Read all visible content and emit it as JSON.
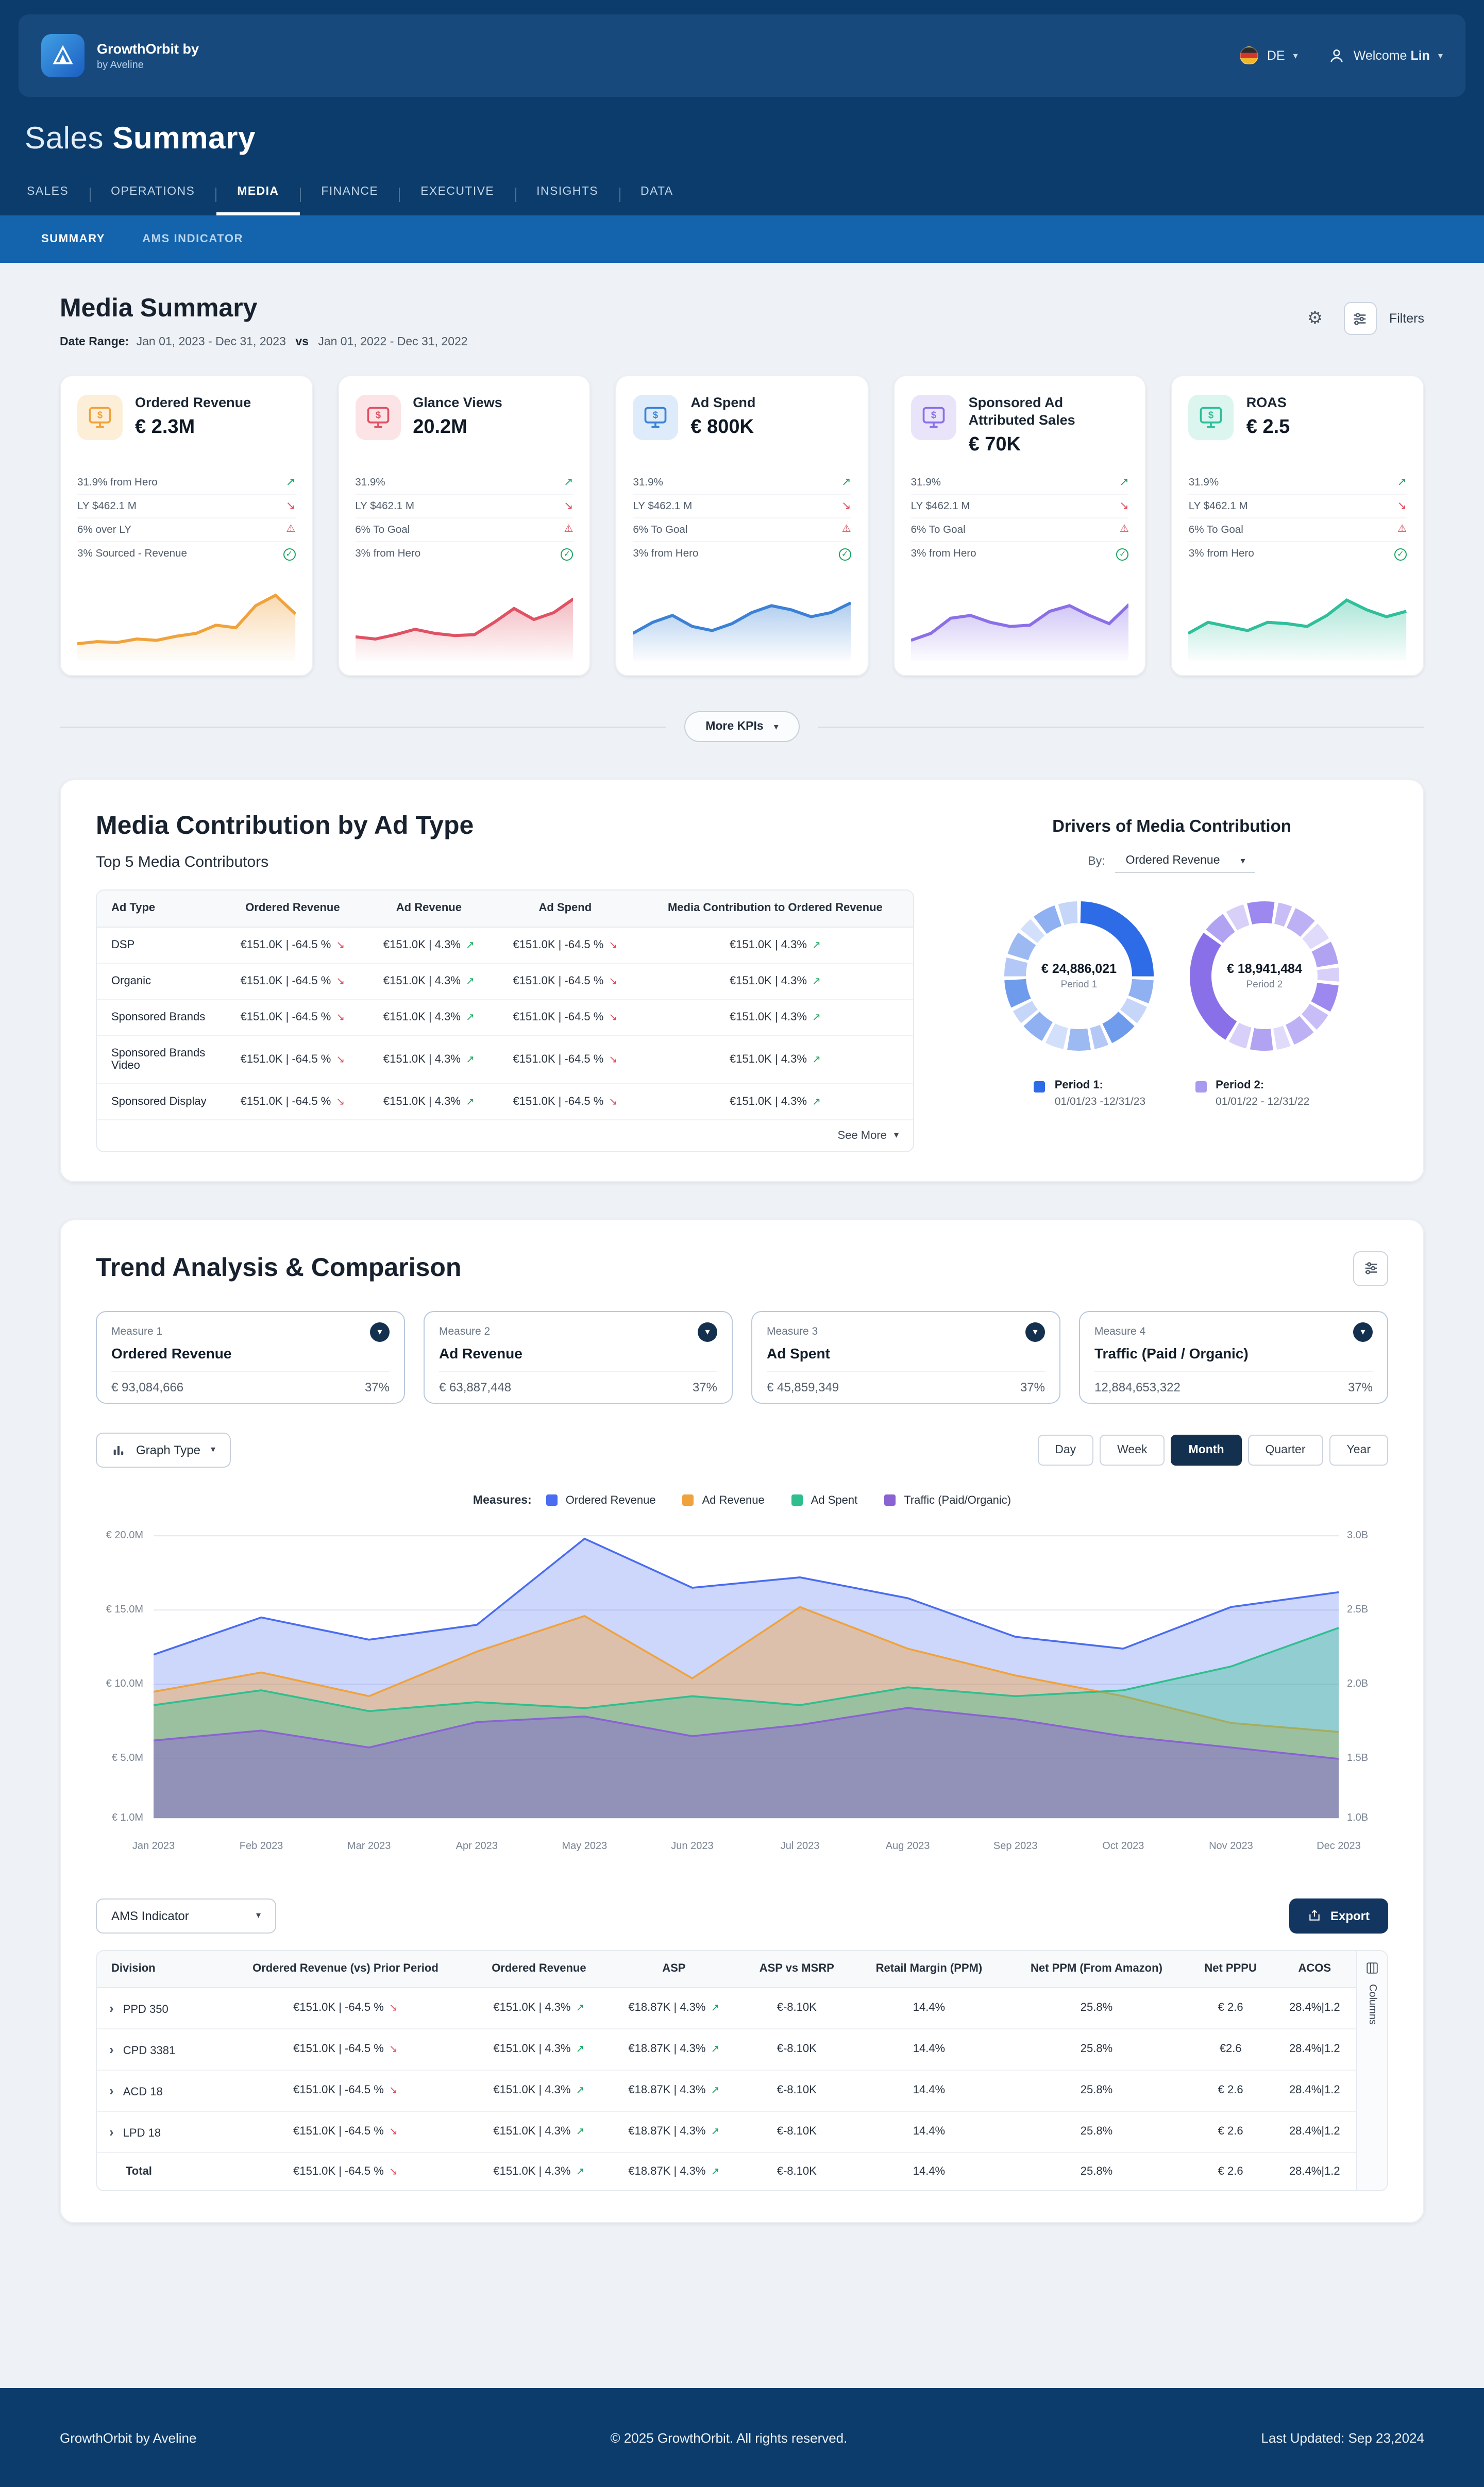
{
  "header": {
    "brand": "GrowthOrbit by",
    "brand_sub": "by Aveline",
    "language": "DE",
    "welcome_label": "Welcome",
    "user_name": "Lin"
  },
  "page_title": {
    "light": "Sales",
    "bold": "Summary"
  },
  "nav": {
    "items": [
      "SALES",
      "OPERATIONS",
      "MEDIA",
      "FINANCE",
      "EXECUTIVE",
      "INSIGHTS",
      "DATA"
    ],
    "active": "MEDIA"
  },
  "subnav": {
    "items": [
      "SUMMARY",
      "AMS INDICATOR"
    ],
    "active": "SUMMARY"
  },
  "media_summary": {
    "title": "Media Summary",
    "date_range_label": "Date Range:",
    "period_1": "Jan 01, 2023 - Dec 31, 2023",
    "vs_label": "vs",
    "period_2": "Jan 01, 2022 - Dec 31, 2022",
    "filters_label": "Filters"
  },
  "kpis": {
    "more_label": "More KPIs",
    "cards": [
      {
        "title": "Ordered Revenue",
        "value": "€ 2.3M",
        "accent": "#f0a23c",
        "icon_bg": "#fdeed8",
        "stats": [
          {
            "text": "31.9% from Hero",
            "icon": "trend-up"
          },
          {
            "text": "LY $462.1 M",
            "icon": "trend-down"
          },
          {
            "text": "6% over LY",
            "icon": "alert"
          },
          {
            "text": "3% Sourced - Revenue",
            "icon": "check"
          }
        ],
        "spark": [
          15,
          18,
          17,
          22,
          20,
          26,
          30,
          42,
          38,
          70,
          85,
          58
        ]
      },
      {
        "title": "Glance Views",
        "value": "20.2M",
        "accent": "#e05263",
        "icon_bg": "#fbe3e6",
        "stats": [
          {
            "text": "31.9%",
            "icon": "trend-up"
          },
          {
            "text": "LY $462.1 M",
            "icon": "trend-down"
          },
          {
            "text": "6% To Goal",
            "icon": "alert"
          },
          {
            "text": "3% from Hero",
            "icon": "check"
          }
        ],
        "spark": [
          25,
          22,
          28,
          36,
          30,
          27,
          28,
          46,
          66,
          50,
          60,
          80
        ]
      },
      {
        "title": "Ad Spend",
        "value": "€ 800K",
        "accent": "#3b82d6",
        "icon_bg": "#ddebfa",
        "stats": [
          {
            "text": "31.9%",
            "icon": "trend-up"
          },
          {
            "text": "LY $462.1 M",
            "icon": "trend-down"
          },
          {
            "text": "6% To Goal",
            "icon": "alert"
          },
          {
            "text": "3% from Hero",
            "icon": "check"
          }
        ],
        "spark": [
          30,
          46,
          56,
          40,
          34,
          44,
          60,
          70,
          64,
          54,
          60,
          74
        ]
      },
      {
        "title": "Sponsored Ad Attributed Sales",
        "value": "€ 70K",
        "accent": "#8b6fe8",
        "icon_bg": "#eae4fb",
        "stats": [
          {
            "text": "31.9%",
            "icon": "trend-up"
          },
          {
            "text": "LY $462.1 M",
            "icon": "trend-down"
          },
          {
            "text": "6% To Goal",
            "icon": "alert"
          },
          {
            "text": "3% from Hero",
            "icon": "check"
          }
        ],
        "spark": [
          20,
          30,
          52,
          56,
          46,
          40,
          42,
          62,
          70,
          56,
          44,
          72
        ]
      },
      {
        "title": "ROAS",
        "value": "€ 2.5",
        "accent": "#2fbf9b",
        "icon_bg": "#dcf5ef",
        "stats": [
          {
            "text": "31.9%",
            "icon": "trend-up"
          },
          {
            "text": "LY $462.1 M",
            "icon": "trend-down"
          },
          {
            "text": "6% To Goal",
            "icon": "alert"
          },
          {
            "text": "3% from Hero",
            "icon": "check"
          }
        ],
        "spark": [
          30,
          46,
          40,
          34,
          46,
          44,
          40,
          56,
          78,
          64,
          54,
          62
        ]
      }
    ]
  },
  "contribution": {
    "title": "Media Contribution by Ad Type",
    "subtitle": "Top 5 Media Contributors",
    "columns": [
      "Ad Type",
      "Ordered Revenue",
      "Ad Revenue",
      "Ad Spend",
      "Media Contribution to Ordered Revenue"
    ],
    "rows": [
      {
        "ad_type": "DSP",
        "cells": [
          {
            "text": "€151.0K | -64.5 %",
            "trend": "down"
          },
          {
            "text": "€151.0K | 4.3%",
            "trend": "up"
          },
          {
            "text": "€151.0K | -64.5 %",
            "trend": "down"
          },
          {
            "text": "€151.0K | 4.3%",
            "trend": "up"
          }
        ]
      },
      {
        "ad_type": "Organic",
        "cells": [
          {
            "text": "€151.0K | -64.5 %",
            "trend": "down"
          },
          {
            "text": "€151.0K | 4.3%",
            "trend": "up"
          },
          {
            "text": "€151.0K | -64.5 %",
            "trend": "down"
          },
          {
            "text": "€151.0K | 4.3%",
            "trend": "up"
          }
        ]
      },
      {
        "ad_type": "Sponsored Brands",
        "cells": [
          {
            "text": "€151.0K | -64.5 %",
            "trend": "down"
          },
          {
            "text": "€151.0K | 4.3%",
            "trend": "up"
          },
          {
            "text": "€151.0K | -64.5 %",
            "trend": "down"
          },
          {
            "text": "€151.0K | 4.3%",
            "trend": "up"
          }
        ]
      },
      {
        "ad_type": "Sponsored Brands Video",
        "cells": [
          {
            "text": "€151.0K | -64.5 %",
            "trend": "down"
          },
          {
            "text": "€151.0K | 4.3%",
            "trend": "up"
          },
          {
            "text": "€151.0K | -64.5 %",
            "trend": "down"
          },
          {
            "text": "€151.0K | 4.3%",
            "trend": "up"
          }
        ]
      },
      {
        "ad_type": "Sponsored Display",
        "cells": [
          {
            "text": "€151.0K | -64.5 %",
            "trend": "down"
          },
          {
            "text": "€151.0K | 4.3%",
            "trend": "up"
          },
          {
            "text": "€151.0K | -64.5 %",
            "trend": "down"
          },
          {
            "text": "€151.0K | 4.3%",
            "trend": "up"
          }
        ]
      }
    ],
    "see_more_label": "See More",
    "drivers": {
      "title": "Drivers of Media Contribution",
      "by_label": "By:",
      "by_value": "Ordered Revenue",
      "donuts": [
        {
          "value": "€ 24,886,021",
          "label": "Period 1",
          "color": "#2e6be6",
          "shades": [
            "#8fb0f1",
            "#c5d6f9",
            "#6f9bed",
            "#b3c8f6",
            "#9db9f2",
            "#d3e0fb"
          ],
          "segments": [
            26,
            6,
            5,
            7,
            4,
            6,
            5,
            6,
            4,
            7,
            5,
            6,
            4,
            6,
            5
          ],
          "start_angle": -90
        },
        {
          "value": "€ 18,941,484",
          "label": "Period 2",
          "color": "#8a70e8",
          "shades": [
            "#b2a2f2",
            "#d8d0f9",
            "#9c88ee",
            "#c8bdf6",
            "#beb0f4",
            "#e0dafb"
          ],
          "segments": [
            28,
            6,
            5,
            7,
            4,
            6,
            5,
            6,
            4,
            7,
            5,
            6,
            4,
            6,
            5
          ],
          "start_angle": 120
        }
      ],
      "legend": [
        {
          "label": "Period 1:",
          "dates": "01/01/23 -12/31/23",
          "color": "#2e6be6"
        },
        {
          "label": "Period 2:",
          "dates": "01/01/22 - 12/31/22",
          "color": "#a99af0"
        }
      ]
    }
  },
  "trend": {
    "title": "Trend Analysis & Comparison",
    "measures": [
      {
        "label": "Measure 1",
        "name": "Ordered Revenue",
        "value": "€ 93,084,666",
        "pct": "37%"
      },
      {
        "label": "Measure 2",
        "name": "Ad Revenue",
        "value": "€ 63,887,448",
        "pct": "37%"
      },
      {
        "label": "Measure 3",
        "name": "Ad Spent",
        "value": "€ 45,859,349",
        "pct": "37%"
      },
      {
        "label": "Measure 4",
        "name": "Traffic (Paid / Organic)",
        "value": "12,884,653,322",
        "pct": "37%"
      }
    ],
    "graph_type_label": "Graph Type",
    "granularity": {
      "options": [
        "Day",
        "Week",
        "Month",
        "Quarter",
        "Year"
      ],
      "active": "Month"
    },
    "measures_label": "Measures:"
  },
  "chart_data": {
    "type": "area",
    "x": [
      "Jan 2023",
      "Feb 2023",
      "Mar 2023",
      "Apr 2023",
      "May 2023",
      "Jun 2023",
      "Jul 2023",
      "Aug 2023",
      "Sep 2023",
      "Oct 2023",
      "Nov 2023",
      "Dec 2023"
    ],
    "left_axis": {
      "ticks": [
        "€ 20.0M",
        "€ 15.0M",
        "€ 10.0M",
        "€ 5.0M",
        "€ 1.0M"
      ],
      "values": [
        20,
        15,
        10,
        5,
        1
      ]
    },
    "right_axis": {
      "ticks": [
        "3.0B",
        "2.5B",
        "2.0B",
        "1.5B",
        "1.0B"
      ],
      "values": [
        3.0,
        2.5,
        2.0,
        1.5,
        1.0
      ]
    },
    "legend_position": "top",
    "grid": true,
    "series": [
      {
        "name": "Ordered Revenue",
        "color": "#4a6cf0",
        "axis": "left",
        "values": [
          12,
          14.5,
          13,
          14,
          19.8,
          16.5,
          17.2,
          15.8,
          13.2,
          12.4,
          15.2,
          16.2
        ]
      },
      {
        "name": "Ad Revenue",
        "color": "#f0a23c",
        "axis": "left",
        "values": [
          9.5,
          10.8,
          9.2,
          12.2,
          14.6,
          10.4,
          15.2,
          12.4,
          10.6,
          9.2,
          7.4,
          6.8
        ]
      },
      {
        "name": "Ad Spent",
        "color": "#2fbf8f",
        "axis": "left",
        "values": [
          8.6,
          9.6,
          8.2,
          8.8,
          8.4,
          9.2,
          8.6,
          9.8,
          9.2,
          9.6,
          11.2,
          13.8
        ]
      },
      {
        "name": "Traffic (Paid/Organic)",
        "color": "#8a63d2",
        "axis": "right",
        "values": [
          1.55,
          1.62,
          1.5,
          1.68,
          1.72,
          1.58,
          1.66,
          1.78,
          1.7,
          1.58,
          1.5,
          1.42
        ]
      }
    ]
  },
  "ams": {
    "selector_value": "AMS Indicator",
    "export_label": "Export",
    "columns_label": "Columns",
    "table": {
      "columns": [
        "Division",
        "Ordered Revenue (vs) Prior Period",
        "Ordered Revenue",
        "ASP",
        "ASP vs MSRP",
        "Retail Margin (PPM)",
        "Net PPM (From Amazon)",
        "Net PPPU",
        "ACOS"
      ],
      "rows": [
        {
          "division": "PPD 350",
          "expandable": true,
          "cells": [
            {
              "text": "€151.0K | -64.5 %",
              "trend": "down"
            },
            {
              "text": "€151.0K | 4.3%",
              "trend": "up"
            },
            {
              "text": "€18.87K | 4.3%",
              "trend": "up"
            },
            {
              "text": "€-8.10K"
            },
            {
              "text": "14.4%"
            },
            {
              "text": "25.8%"
            },
            {
              "text": "€ 2.6"
            },
            {
              "text": "28.4%|1.2"
            }
          ]
        },
        {
          "division": "CPD 3381",
          "expandable": true,
          "cells": [
            {
              "text": "€151.0K | -64.5 %",
              "trend": "down"
            },
            {
              "text": "€151.0K | 4.3%",
              "trend": "up"
            },
            {
              "text": "€18.87K | 4.3%",
              "trend": "up"
            },
            {
              "text": "€-8.10K"
            },
            {
              "text": "14.4%"
            },
            {
              "text": "25.8%"
            },
            {
              "text": "€2.6"
            },
            {
              "text": "28.4%|1.2"
            }
          ]
        },
        {
          "division": "ACD 18",
          "expandable": true,
          "cells": [
            {
              "text": "€151.0K | -64.5 %",
              "trend": "down"
            },
            {
              "text": "€151.0K | 4.3%",
              "trend": "up"
            },
            {
              "text": "€18.87K | 4.3%",
              "trend": "up"
            },
            {
              "text": "€-8.10K"
            },
            {
              "text": "14.4%"
            },
            {
              "text": "25.8%"
            },
            {
              "text": "€ 2.6"
            },
            {
              "text": "28.4%|1.2"
            }
          ]
        },
        {
          "division": "LPD 18",
          "expandable": true,
          "cells": [
            {
              "text": "€151.0K | -64.5 %",
              "trend": "down"
            },
            {
              "text": "€151.0K | 4.3%",
              "trend": "up"
            },
            {
              "text": "€18.87K | 4.3%",
              "trend": "up"
            },
            {
              "text": "€-8.10K"
            },
            {
              "text": "14.4%"
            },
            {
              "text": "25.8%"
            },
            {
              "text": "€ 2.6"
            },
            {
              "text": "28.4%|1.2"
            }
          ]
        },
        {
          "division": "Total",
          "expandable": false,
          "cells": [
            {
              "text": "€151.0K | -64.5 %",
              "trend": "down"
            },
            {
              "text": "€151.0K | 4.3%",
              "trend": "up"
            },
            {
              "text": "€18.87K | 4.3%",
              "trend": "up"
            },
            {
              "text": "€-8.10K"
            },
            {
              "text": "14.4%"
            },
            {
              "text": "25.8%"
            },
            {
              "text": "€ 2.6"
            },
            {
              "text": "28.4%|1.2"
            }
          ]
        }
      ]
    }
  },
  "footer": {
    "left": "GrowthOrbit by Aveline",
    "center": "© 2025 GrowthOrbit. All rights reserved.",
    "right": "Last Updated: Sep 23,2024"
  }
}
